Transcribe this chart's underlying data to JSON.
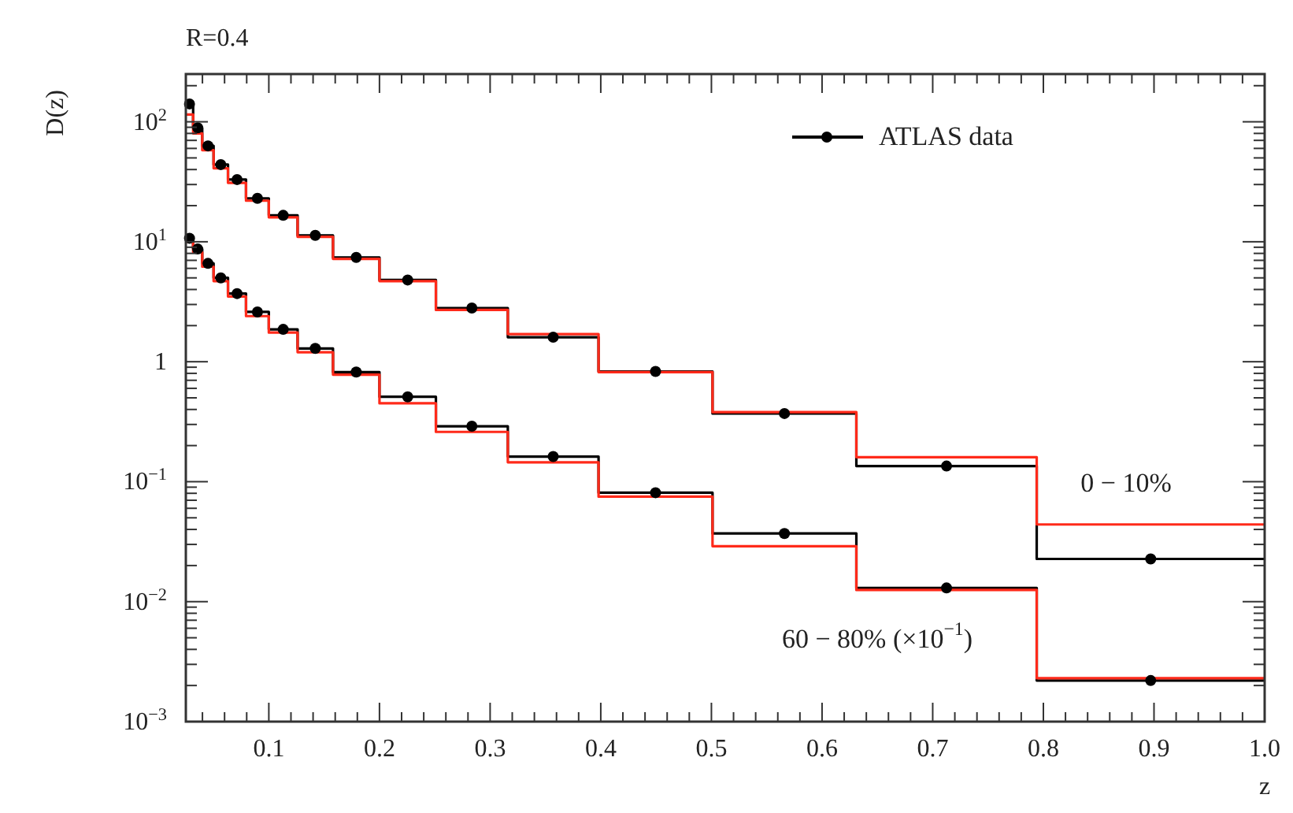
{
  "chart_data": {
    "type": "step",
    "title": "R=0.4",
    "xlabel": "z",
    "ylabel": "D(z)",
    "x": [
      0.025,
      0.0316,
      0.0398,
      0.0501,
      0.0631,
      0.0794,
      0.1,
      0.126,
      0.158,
      0.2,
      0.251,
      0.316,
      0.398,
      0.501,
      0.631,
      0.794,
      1.0
    ],
    "series": [
      {
        "color": "#000000",
        "marker": "none",
        "values": [
          141,
          89,
          63,
          44,
          33,
          23,
          16.6,
          11.3,
          7.4,
          4.8,
          2.8,
          1.6,
          0.83,
          0.37,
          0.135,
          0.0227,
          0.0227
        ]
      },
      {
        "color": "#000000",
        "marker": "none",
        "values": [
          10.7,
          8.7,
          6.6,
          5.0,
          3.7,
          2.6,
          1.86,
          1.29,
          0.82,
          0.51,
          0.29,
          0.162,
          0.081,
          0.037,
          0.013,
          0.0022,
          0.0022
        ]
      },
      {
        "color": "#ff2a1a",
        "marker": "none",
        "values": [
          115,
          80,
          58,
          41,
          31,
          22,
          16,
          11,
          7.2,
          4.7,
          2.7,
          1.7,
          0.82,
          0.38,
          0.16,
          0.044,
          0.044
        ]
      },
      {
        "color": "#ff2a1a",
        "marker": "none",
        "values": [
          10,
          8.2,
          6.2,
          4.7,
          3.5,
          2.4,
          1.75,
          1.2,
          0.78,
          0.45,
          0.26,
          0.145,
          0.075,
          0.029,
          0.0125,
          0.0023,
          0.0023
        ]
      },
      {
        "type": "scatter",
        "name": "ATLAS data",
        "color": "#000000",
        "marker": "circle",
        "x": [
          0.0283,
          0.0357,
          0.045,
          0.0566,
          0.0713,
          0.0897,
          0.113,
          0.142,
          0.179,
          0.2255,
          0.2835,
          0.357,
          0.4495,
          0.566,
          0.7125,
          0.897
        ],
        "values": [
          141,
          89,
          63,
          44,
          33,
          23,
          16.6,
          11.3,
          7.4,
          4.8,
          2.8,
          1.6,
          0.83,
          0.37,
          0.135,
          0.0227
        ]
      },
      {
        "type": "scatter",
        "color": "#000000",
        "marker": "circle",
        "x": [
          0.0283,
          0.0357,
          0.045,
          0.0566,
          0.0713,
          0.0897,
          0.113,
          0.142,
          0.179,
          0.2255,
          0.2835,
          0.357,
          0.4495,
          0.566,
          0.7125,
          0.897
        ],
        "values": [
          10.7,
          8.7,
          6.6,
          5.0,
          3.7,
          2.6,
          1.86,
          1.29,
          0.82,
          0.51,
          0.29,
          0.162,
          0.081,
          0.037,
          0.013,
          0.0022
        ]
      }
    ],
    "xlim": [
      0.025,
      1.0
    ],
    "xticks": [
      {
        "value": 0.04,
        "label": null
      },
      {
        "value": 0.06,
        "label": null
      },
      {
        "value": 0.08,
        "label": null
      },
      0.1,
      {
        "value": 0.12,
        "label": null
      },
      {
        "value": 0.14,
        "label": null
      },
      {
        "value": 0.16,
        "label": null
      },
      {
        "value": 0.18,
        "label": null
      },
      0.2,
      {
        "value": 0.22,
        "label": null
      },
      {
        "value": 0.24,
        "label": null
      },
      {
        "value": 0.26,
        "label": null
      },
      {
        "value": 0.28,
        "label": null
      },
      0.3,
      {
        "value": 0.32,
        "label": null
      },
      {
        "value": 0.34,
        "label": null
      },
      {
        "value": 0.36,
        "label": null
      },
      {
        "value": 0.38,
        "label": null
      },
      0.4,
      {
        "value": 0.42,
        "label": null
      },
      {
        "value": 0.44,
        "label": null
      },
      {
        "value": 0.46,
        "label": null
      },
      {
        "value": 0.48,
        "label": null
      },
      0.5,
      {
        "value": 0.52,
        "label": null
      },
      {
        "value": 0.54,
        "label": null
      },
      {
        "value": 0.56,
        "label": null
      },
      {
        "value": 0.58,
        "label": null
      },
      0.6,
      {
        "value": 0.62,
        "label": null
      },
      {
        "value": 0.64,
        "label": null
      },
      {
        "value": 0.66,
        "label": null
      },
      {
        "value": 0.68,
        "label": null
      },
      0.7,
      {
        "value": 0.72,
        "label": null
      },
      {
        "value": 0.74,
        "label": null
      },
      {
        "value": 0.76,
        "label": null
      },
      {
        "value": 0.78,
        "label": null
      },
      0.8,
      {
        "value": 0.82,
        "label": null
      },
      {
        "value": 0.84,
        "label": null
      },
      {
        "value": 0.86,
        "label": null
      },
      {
        "value": 0.88,
        "label": null
      },
      0.9,
      {
        "value": 0.92,
        "label": null
      },
      {
        "value": 0.94,
        "label": null
      },
      {
        "value": 0.96,
        "label": null
      },
      {
        "value": 0.98,
        "label": null
      },
      {
        "value": 1.0,
        "label": "1.0"
      }
    ],
    "ylim": [
      0.001,
      250
    ],
    "log": true,
    "yticks": [
      {
        "value": 0.001,
        "label": "10$^{−3}$"
      },
      {
        "value": 0.002,
        "label": null
      },
      {
        "value": 0.003,
        "label": null
      },
      {
        "value": 0.004,
        "label": null
      },
      {
        "value": 0.005,
        "label": null
      },
      {
        "value": 0.006,
        "label": null
      },
      {
        "value": 0.007,
        "label": null
      },
      {
        "value": 0.008,
        "label": null
      },
      {
        "value": 0.009,
        "label": null
      },
      {
        "value": 0.01,
        "label": "10$^{−2}$"
      },
      {
        "value": 0.02,
        "label": null
      },
      {
        "value": 0.03,
        "label": null
      },
      {
        "value": 0.04,
        "label": null
      },
      {
        "value": 0.05,
        "label": null
      },
      {
        "value": 0.06,
        "label": null
      },
      {
        "value": 0.07,
        "label": null
      },
      {
        "value": 0.08,
        "label": null
      },
      {
        "value": 0.09,
        "label": null
      },
      {
        "value": 0.1,
        "label": "10$^{−1}$"
      },
      {
        "value": 0.2,
        "label": null
      },
      {
        "value": 0.3,
        "label": null
      },
      {
        "value": 0.4,
        "label": null
      },
      {
        "value": 0.5,
        "label": null
      },
      {
        "value": 0.6,
        "label": null
      },
      {
        "value": 0.7,
        "label": null
      },
      {
        "value": 0.8,
        "label": null
      },
      {
        "value": 0.9,
        "label": null
      },
      1,
      {
        "value": 2,
        "label": null
      },
      {
        "value": 3,
        "label": null
      },
      {
        "value": 4,
        "label": null
      },
      {
        "value": 5,
        "label": null
      },
      {
        "value": 6,
        "label": null
      },
      {
        "value": 7,
        "label": null
      },
      {
        "value": 8,
        "label": null
      },
      {
        "value": 9,
        "label": null
      },
      {
        "value": 10,
        "label": "10$^{1}$"
      },
      {
        "value": 20,
        "label": null
      },
      {
        "value": 30,
        "label": null
      },
      {
        "value": 40,
        "label": null
      },
      {
        "value": 50,
        "label": null
      },
      {
        "value": 60,
        "label": null
      },
      {
        "value": 70,
        "label": null
      },
      {
        "value": 80,
        "label": null
      },
      {
        "value": 90,
        "label": null
      },
      {
        "value": 100,
        "label": "10$^{2}$"
      },
      {
        "value": 200,
        "label": null
      }
    ],
    "legend": "top right",
    "annotations": [
      "0 − 10%",
      "60 − 80% (×10$^{−1}$)"
    ]
  }
}
